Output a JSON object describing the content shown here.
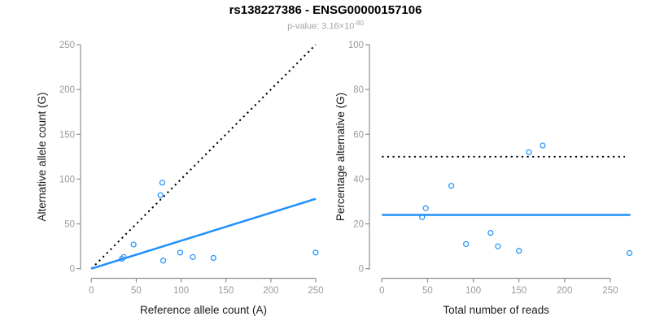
{
  "header": {
    "title": "rs138227386 - ENSG00000157106",
    "subtitle_prefix": "p-value: 3.16×10",
    "subtitle_exponent": "-80"
  },
  "colors": {
    "accent_blue": "#1E90FF",
    "dotted_black": "#000000",
    "axis_gray": "#8f8f8f",
    "tick_label_gray": "#9a9a9a",
    "axis_title_color": "#1a1a1a",
    "subtitle_gray": "#a3a3a3",
    "background": "#ffffff"
  },
  "chart_data": [
    {
      "type": "scatter",
      "name": "left-panel",
      "xlabel": "Reference allele count (A)",
      "ylabel": "Alternative allele count (G)",
      "xlim": [
        0,
        250
      ],
      "ylim": [
        0,
        250
      ],
      "xticks": [
        0,
        50,
        100,
        150,
        200,
        250
      ],
      "yticks": [
        0,
        50,
        100,
        150,
        200,
        250
      ],
      "grid": false,
      "legend": null,
      "marker": "open-circle",
      "points": [
        [
          34,
          11
        ],
        [
          36,
          13
        ],
        [
          47,
          27
        ],
        [
          77,
          82
        ],
        [
          79,
          96
        ],
        [
          80,
          9
        ],
        [
          99,
          18
        ],
        [
          113,
          13
        ],
        [
          136,
          12
        ],
        [
          250,
          18
        ]
      ],
      "lines": [
        {
          "name": "identity-line",
          "style": "dotted",
          "color": "#000000",
          "from": [
            0,
            0
          ],
          "to": [
            250,
            250
          ]
        },
        {
          "name": "regression-line",
          "style": "solid",
          "color": "#1E90FF",
          "from": [
            0,
            0
          ],
          "to": [
            250,
            78
          ]
        }
      ]
    },
    {
      "type": "scatter",
      "name": "right-panel",
      "xlabel": "Total number of reads",
      "ylabel": "Percentage alternative (G)",
      "xlim": [
        0,
        272
      ],
      "ylim": [
        0,
        100
      ],
      "xticks": [
        0,
        50,
        100,
        150,
        200,
        250
      ],
      "yticks": [
        0,
        20,
        40,
        60,
        80,
        100
      ],
      "grid": false,
      "legend": null,
      "marker": "open-circle",
      "points": [
        [
          44,
          23
        ],
        [
          48,
          27
        ],
        [
          76,
          37
        ],
        [
          92,
          11
        ],
        [
          119,
          16
        ],
        [
          127,
          10
        ],
        [
          150,
          8
        ],
        [
          161,
          52
        ],
        [
          176,
          55
        ],
        [
          271,
          7
        ]
      ],
      "lines": [
        {
          "name": "fifty-percent-line",
          "style": "dotted",
          "color": "#000000",
          "from": [
            0,
            50
          ],
          "to": [
            266,
            50
          ]
        },
        {
          "name": "mean-percentage-line",
          "style": "solid",
          "color": "#1E90FF",
          "from": [
            0,
            24
          ],
          "to": [
            272,
            24
          ]
        }
      ]
    }
  ]
}
